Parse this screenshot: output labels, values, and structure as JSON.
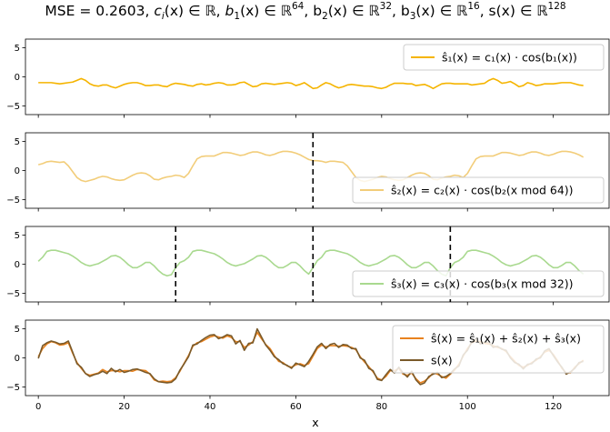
{
  "title": "MSE = 0.2603, c_i(x) ∈ ℝ, b_1(x) ∈ ℝ^64, b_2(x) ∈ ℝ^32, b_3(x) ∈ ℝ^16, s(x) ∈ ℝ^128",
  "title_parts": {
    "mse": "MSE = 0.2603, ",
    "c": "c",
    "c_sub": "i",
    "c_rest": "(x) ∈ ℝ, ",
    "b1": "b",
    "b1_sub": "1",
    "b1_rest": "(x) ∈ ℝ",
    "b1_sup": "64",
    "b2": ", b",
    "b2_sub": "2",
    "b2_rest": "(x) ∈ ℝ",
    "b2_sup": "32",
    "b3": ", b",
    "b3_sub": "3",
    "b3_rest": "(x) ∈ ℝ",
    "b3_sup": "16",
    "s": ", s(x) ∈ ℝ",
    "s_sup": "128"
  },
  "colors": {
    "s1": "#f5b400",
    "s2": "#f2cd7a",
    "s3": "#a9d98f",
    "sum": "#e8821e",
    "target": "#7a5a2a"
  },
  "chart_data": [
    {
      "type": "line",
      "xlim": [
        -3,
        133
      ],
      "ylim": [
        -6.5,
        6.5
      ],
      "yticks": [
        -5,
        0,
        5
      ],
      "vlines": [],
      "legend_placement": "top-right",
      "legend": [
        "ŝ₁(x) = c₁(x) · cos(b₁(x))"
      ],
      "series": [
        {
          "name": "ŝ₁(x) = c₁(x) · cos(b₁(x))",
          "color_key": "s1",
          "y": [
            -1.0,
            -1.0,
            -1.0,
            -1.0,
            -1.1,
            -1.2,
            -1.1,
            -1.0,
            -0.9,
            -0.6,
            -0.3,
            -0.6,
            -1.2,
            -1.5,
            -1.6,
            -1.4,
            -1.4,
            -1.7,
            -1.9,
            -1.6,
            -1.3,
            -1.1,
            -1.0,
            -1.0,
            -1.2,
            -1.5,
            -1.5,
            -1.4,
            -1.4,
            -1.6,
            -1.7,
            -1.3,
            -1.1,
            -1.2,
            -1.3,
            -1.5,
            -1.6,
            -1.3,
            -1.2,
            -1.4,
            -1.3,
            -1.1,
            -1.0,
            -1.1,
            -1.4,
            -1.4,
            -1.3,
            -1.0,
            -0.9,
            -1.3,
            -1.7,
            -1.6,
            -1.2,
            -1.1,
            -1.2,
            -1.3,
            -1.2,
            -1.1,
            -1.0,
            -1.1,
            -1.5,
            -1.3,
            -1.0,
            -1.5,
            -2.0,
            -1.9,
            -1.4,
            -1.0,
            -1.2,
            -1.6,
            -1.9,
            -1.7,
            -1.4,
            -1.3,
            -1.4,
            -1.5,
            -1.6,
            -1.6,
            -1.7,
            -1.9,
            -2.0,
            -1.8,
            -1.4,
            -1.1,
            -1.1,
            -1.1,
            -1.2,
            -1.2,
            -1.5,
            -1.4,
            -1.3,
            -1.6,
            -2.0,
            -1.6,
            -1.2,
            -1.1,
            -1.1,
            -1.2,
            -1.2,
            -1.2,
            -1.2,
            -1.4,
            -1.3,
            -1.2,
            -1.1,
            -0.6,
            -0.3,
            -0.6,
            -1.1,
            -1.0,
            -0.8,
            -1.2,
            -1.7,
            -1.5,
            -1.0,
            -1.2,
            -1.5,
            -1.4,
            -1.2,
            -1.2,
            -1.2,
            -1.1,
            -1.0,
            -1.0,
            -1.0,
            -1.2,
            -1.4,
            -1.5
          ]
        }
      ]
    },
    {
      "type": "line",
      "xlim": [
        -3,
        133
      ],
      "ylim": [
        -6.5,
        6.5
      ],
      "yticks": [
        -5,
        0,
        5
      ],
      "vlines": [
        64
      ],
      "legend_placement": "lower-right",
      "legend": [
        "ŝ₂(x) = c₂(x) · cos(b₂(x mod 64))"
      ],
      "series": [
        {
          "name": "ŝ₂(x) = c₂(x) · cos(b₂(x mod 64))",
          "color_key": "s2",
          "y": [
            1.0,
            1.2,
            1.5,
            1.6,
            1.5,
            1.4,
            1.5,
            0.8,
            -0.2,
            -1.2,
            -1.7,
            -1.9,
            -1.7,
            -1.5,
            -1.2,
            -1.0,
            -1.1,
            -1.4,
            -1.6,
            -1.7,
            -1.6,
            -1.2,
            -0.8,
            -0.5,
            -0.4,
            -0.5,
            -0.9,
            -1.5,
            -1.6,
            -1.3,
            -1.1,
            -1.0,
            -0.8,
            -0.9,
            -1.2,
            -0.5,
            0.8,
            2.0,
            2.4,
            2.5,
            2.5,
            2.5,
            2.8,
            3.1,
            3.1,
            3.0,
            2.8,
            2.6,
            2.7,
            3.0,
            3.2,
            3.2,
            3.0,
            2.7,
            2.6,
            2.8,
            3.1,
            3.3,
            3.3,
            3.2,
            3.0,
            2.7,
            2.3,
            1.9,
            1.7,
            1.7,
            1.6,
            1.4,
            1.6,
            1.6,
            1.5,
            1.4,
            0.8,
            -0.2,
            -1.2,
            -1.7,
            -1.9,
            -1.7,
            -1.5,
            -1.2,
            -1.0,
            -1.1,
            -1.4,
            -1.6,
            -1.7,
            -1.6,
            -1.2,
            -0.8,
            -0.5,
            -0.4,
            -0.5,
            -0.9,
            -1.5,
            -1.6,
            -1.3,
            -1.1,
            -1.0,
            -0.8,
            -0.9,
            -1.2,
            -0.5,
            0.8,
            2.0,
            2.4,
            2.5,
            2.5,
            2.5,
            2.8,
            3.1,
            3.1,
            3.0,
            2.8,
            2.6,
            2.7,
            3.0,
            3.2,
            3.2,
            3.0,
            2.7,
            2.6,
            2.8,
            3.1,
            3.3,
            3.3,
            3.2,
            3.0,
            2.7,
            2.3
          ]
        }
      ]
    },
    {
      "type": "line",
      "xlim": [
        -3,
        133
      ],
      "ylim": [
        -6.5,
        6.5
      ],
      "yticks": [
        -5,
        0,
        5
      ],
      "vlines": [
        32,
        64,
        96
      ],
      "legend_placement": "lower-right",
      "legend": [
        "ŝ₃(x) = c₃(x) · cos(b₃(x mod 32))"
      ],
      "series": [
        {
          "name": "ŝ₃(x) = c₃(x) · cos(b₃(x mod 32))",
          "color_key": "s3",
          "y": [
            0.5,
            1.2,
            2.2,
            2.4,
            2.4,
            2.2,
            2.0,
            1.8,
            1.4,
            0.9,
            0.3,
            -0.1,
            -0.3,
            -0.1,
            0.1,
            0.5,
            0.9,
            1.4,
            1.5,
            1.2,
            0.6,
            -0.1,
            -0.6,
            -0.6,
            -0.2,
            0.3,
            0.3,
            -0.3,
            -1.1,
            -1.7,
            -2.0,
            -1.8,
            -0.6,
            0.3,
            0.6,
            1.2,
            2.2,
            2.4,
            2.4,
            2.2,
            2.0,
            1.8,
            1.4,
            0.9,
            0.3,
            -0.1,
            -0.3,
            -0.1,
            0.1,
            0.5,
            0.9,
            1.4,
            1.5,
            1.2,
            0.6,
            -0.1,
            -0.6,
            -0.6,
            -0.2,
            0.3,
            0.3,
            -0.3,
            -1.1,
            -1.7,
            -0.6,
            0.6,
            1.2,
            2.2,
            2.4,
            2.4,
            2.2,
            2.0,
            1.8,
            1.4,
            0.9,
            0.3,
            -0.1,
            -0.3,
            -0.1,
            0.1,
            0.5,
            0.9,
            1.4,
            1.5,
            1.2,
            0.6,
            -0.1,
            -0.6,
            -0.6,
            -0.2,
            0.3,
            0.3,
            -0.3,
            -1.1,
            -1.7,
            -2.0,
            -0.6,
            0.3,
            0.6,
            1.2,
            2.2,
            2.4,
            2.4,
            2.2,
            2.0,
            1.8,
            1.4,
            0.9,
            0.3,
            -0.1,
            -0.3,
            -0.1,
            0.1,
            0.5,
            0.9,
            1.4,
            1.5,
            1.2,
            0.6,
            -0.1,
            -0.6,
            -0.6,
            -0.2,
            0.3,
            0.3,
            -0.3,
            -1.1,
            -1.7
          ]
        }
      ]
    },
    {
      "type": "line",
      "xlim": [
        -3,
        133
      ],
      "ylim": [
        -6.5,
        6.5
      ],
      "yticks": [
        -5,
        0,
        5
      ],
      "xticks": [
        0,
        20,
        40,
        60,
        80,
        100,
        120
      ],
      "xlabel": "x",
      "vlines": [],
      "legend_placement": "top-right",
      "legend": [
        "ŝ(x) = ŝ₁(x) + ŝ₂(x) + ŝ₃(x)",
        "s(x)"
      ],
      "series": [
        {
          "name": "ŝ(x) = ŝ₁(x) + ŝ₂(x) + ŝ₃(x)",
          "color_key": "sum",
          "y": [
            0.2,
            1.6,
            2.4,
            2.8,
            2.6,
            2.2,
            2.3,
            2.6,
            0.8,
            -0.8,
            -1.8,
            -2.7,
            -3.0,
            -2.8,
            -2.6,
            -2.0,
            -2.4,
            -2.2,
            -2.2,
            -2.4,
            -2.2,
            -2.2,
            -2.3,
            -2.0,
            -2.1,
            -2.2,
            -2.8,
            -3.8,
            -4.1,
            -4.0,
            -4.1,
            -4.0,
            -3.4,
            -2.3,
            -0.9,
            0.4,
            2.0,
            2.6,
            2.8,
            3.2,
            3.6,
            3.8,
            3.6,
            3.4,
            3.8,
            3.5,
            2.8,
            2.8,
            1.8,
            2.2,
            2.8,
            4.4,
            3.3,
            2.3,
            1.6,
            0.4,
            -0.6,
            -0.8,
            -1.4,
            -1.6,
            -1.2,
            -1.0,
            -1.3,
            -1.0,
            0.3,
            1.6,
            2.2,
            1.9,
            2.1,
            2.1,
            2.0,
            2.1,
            2.0,
            1.8,
            1.4,
            0.2,
            -0.7,
            -1.5,
            -2.4,
            -3.5,
            -3.8,
            -3.2,
            -2.2,
            -2.2,
            -1.8,
            -2.8,
            -3.0,
            -2.6,
            -3.6,
            -4.3,
            -4.0,
            -3.4,
            -2.6,
            -2.8,
            -3.2,
            -3.5,
            -2.8,
            -2.1,
            -1.1,
            0.3,
            1.6,
            2.6,
            2.9,
            2.8,
            2.5,
            2.4,
            2.1,
            1.8,
            1.6,
            1.1,
            0.2,
            -0.6,
            -1.3,
            -1.6,
            -1.3,
            -0.8,
            -0.4,
            0.2,
            1.0,
            1.3,
            0.6,
            -0.5,
            -1.8,
            -2.6,
            -2.6,
            -1.6,
            -1.0,
            -0.4
          ]
        },
        {
          "name": "s(x)",
          "color_key": "target",
          "y": [
            -0.1,
            2.1,
            2.6,
            2.9,
            2.7,
            2.4,
            2.5,
            2.9,
            1.0,
            -1.0,
            -1.6,
            -2.7,
            -3.2,
            -2.9,
            -2.7,
            -2.3,
            -2.7,
            -1.8,
            -2.4,
            -2.0,
            -2.5,
            -2.3,
            -2.0,
            -1.9,
            -2.2,
            -2.5,
            -2.7,
            -3.6,
            -4.1,
            -4.2,
            -4.3,
            -4.2,
            -3.6,
            -2.1,
            -1.0,
            0.2,
            2.2,
            2.4,
            3.0,
            3.5,
            3.9,
            4.0,
            3.3,
            3.6,
            4.0,
            3.8,
            2.4,
            3.0,
            1.3,
            2.5,
            2.6,
            5.0,
            3.6,
            2.2,
            1.3,
            0.2,
            -0.3,
            -1.0,
            -1.3,
            -1.8,
            -0.9,
            -1.2,
            -1.5,
            -0.6,
            0.6,
            1.9,
            2.5,
            1.6,
            2.3,
            2.5,
            1.8,
            2.3,
            2.2,
            1.6,
            1.6,
            0.0,
            -0.4,
            -1.8,
            -2.2,
            -3.7,
            -3.9,
            -2.9,
            -2.0,
            -2.6,
            -1.6,
            -2.6,
            -3.3,
            -2.3,
            -3.8,
            -4.6,
            -4.3,
            -3.2,
            -2.8,
            -2.5,
            -3.4,
            -3.2,
            -2.7,
            -1.9,
            -1.4,
            0.5,
            1.3,
            2.8,
            3.2,
            2.4,
            2.7,
            2.7,
            1.8,
            2.0,
            1.5,
            1.3,
            0.0,
            -0.8,
            -1.1,
            -1.9,
            -1.1,
            -1.0,
            -0.2,
            0.0,
            1.2,
            1.6,
            0.4,
            -0.7,
            -1.6,
            -2.8,
            -2.4,
            -1.8,
            -0.8,
            -0.6
          ]
        }
      ]
    }
  ]
}
